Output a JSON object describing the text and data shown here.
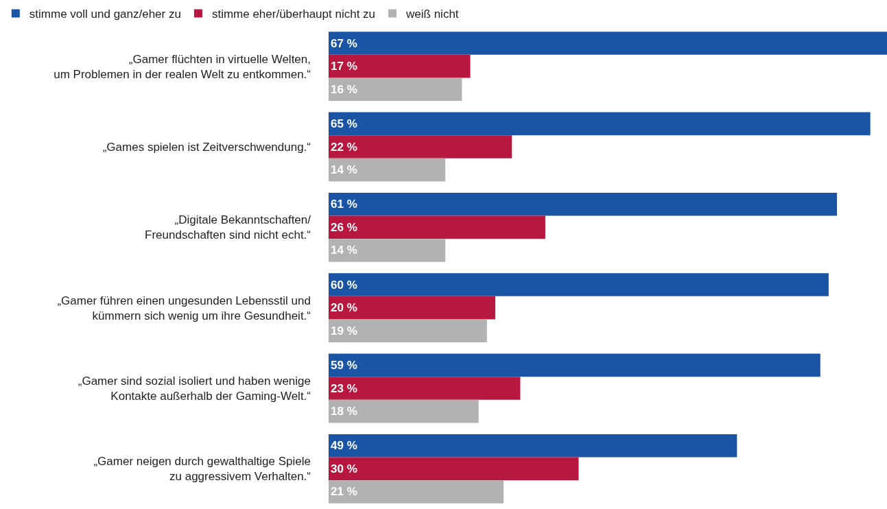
{
  "chart_data": {
    "type": "bar",
    "orientation": "horizontal",
    "categories": [
      "„Gamer flüchten in virtuelle Welten,\num Problemen in der realen Welt zu entkommen.“",
      "„Games spielen ist Zeitverschwendung.“",
      "„Digitale Bekanntschaften/\nFreundschaften sind nicht echt.“",
      "„Gamer führen einen ungesunden Lebensstil und\nkümmern sich wenig um ihre Gesundheit.“",
      "„Gamer sind sozial isoliert und haben wenige\nKontakte außerhalb der Gaming-Welt.“",
      "„Gamer neigen durch gewalthaltige Spiele\nzu aggressivem Verhalten.“"
    ],
    "series": [
      {
        "name": "stimme voll und ganz/eher zu",
        "color": "#1a55a5",
        "values": [
          67,
          65,
          61,
          60,
          59,
          49
        ],
        "value_labels": [
          "67 %",
          "65 %",
          "61 %",
          "60 %",
          "59 %",
          "49 %"
        ]
      },
      {
        "name": "stimme eher/überhaupt nicht zu",
        "color": "#b8173f",
        "values": [
          17,
          22,
          26,
          20,
          23,
          30
        ],
        "value_labels": [
          "17 %",
          "22 %",
          "26 %",
          "20 %",
          "23 %",
          "30 %"
        ]
      },
      {
        "name": "weiß nicht",
        "color": "#b2b2b2",
        "values": [
          16,
          14,
          14,
          19,
          18,
          21
        ],
        "value_labels": [
          "16 %",
          "14 %",
          "14 %",
          "19 %",
          "18 %",
          "21 %"
        ]
      }
    ],
    "xlim": [
      0,
      67
    ],
    "legend": "top left",
    "tick_labels": "y"
  }
}
